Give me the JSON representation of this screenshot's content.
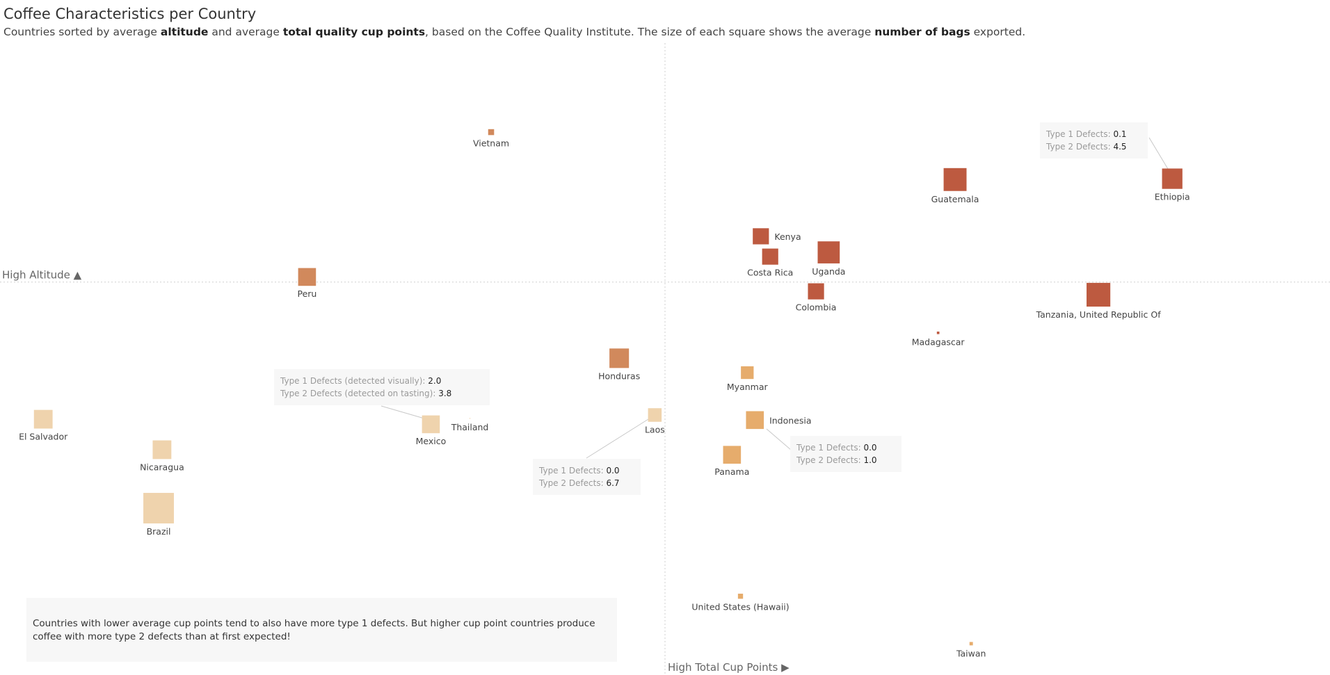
{
  "header": {
    "title": "Coffee Characteristics per Country",
    "subtitle_parts": [
      {
        "text": "Countries sorted by average ",
        "bold": false
      },
      {
        "text": "altitude",
        "bold": true
      },
      {
        "text": " and average ",
        "bold": false
      },
      {
        "text": "total quality cup points",
        "bold": true
      },
      {
        "text": ", based on the Coffee Quality Institute. The size of each square shows the average ",
        "bold": false
      },
      {
        "text": "number of bags",
        "bold": true
      },
      {
        "text": " exported.",
        "bold": false
      }
    ]
  },
  "note": "Countries with lower average cup points tend to also have more type 1 defects. But higher cup point countries produce coffee with more type 2 defects than at first expected!",
  "chart_data": {
    "type": "scatter",
    "title": "Coffee Characteristics per Country",
    "xlabel": "High Total Cup Points ▶",
    "ylabel": "High Altitude ▲",
    "xlim": [
      0,
      1568
    ],
    "ylim": [
      0,
      797
    ],
    "x_divider": 784,
    "y_divider": 464,
    "grid": false,
    "color_scale": {
      "low": "#efd3ad",
      "mid": "#e6ac6c",
      "high": "#d1895c",
      "top": "#bd5a40"
    },
    "points": [
      {
        "country": "Vietnam",
        "x": 579,
        "y": 641,
        "bags": 7,
        "color": "#d1895c"
      },
      {
        "country": "Peru",
        "x": 362,
        "y": 470,
        "bags": 21,
        "color": "#d1895c"
      },
      {
        "country": "Honduras",
        "x": 730,
        "y": 374,
        "bags": 23,
        "color": "#d1895c"
      },
      {
        "country": "Guatemala",
        "x": 1126,
        "y": 585,
        "bags": 27,
        "color": "#bd5a40"
      },
      {
        "country": "Ethiopia",
        "x": 1382,
        "y": 586,
        "bags": 24,
        "color": "#bd5a40"
      },
      {
        "country": "Kenya",
        "x": 897,
        "y": 518,
        "bags": 19,
        "color": "#bd5a40"
      },
      {
        "country": "Costa Rica",
        "x": 908,
        "y": 494,
        "bags": 19,
        "color": "#bd5a40"
      },
      {
        "country": "Uganda",
        "x": 977,
        "y": 499,
        "bags": 26,
        "color": "#bd5a40"
      },
      {
        "country": "Colombia",
        "x": 962,
        "y": 453,
        "bags": 19,
        "color": "#bd5a40"
      },
      {
        "country": "Tanzania, United Republic Of",
        "x": 1295,
        "y": 449,
        "bags": 28,
        "color": "#bd5a40"
      },
      {
        "country": "Madagascar",
        "x": 1106,
        "y": 404,
        "bags": 3,
        "color": "#bd5a40"
      },
      {
        "country": "Myanmar",
        "x": 881,
        "y": 357,
        "bags": 15,
        "color": "#e6ac6c"
      },
      {
        "country": "El Salvador",
        "x": 51,
        "y": 302,
        "bags": 22,
        "color": "#efd3ad"
      },
      {
        "country": "Nicaragua",
        "x": 191,
        "y": 266,
        "bags": 22,
        "color": "#efd3ad"
      },
      {
        "country": "Brazil",
        "x": 187,
        "y": 197,
        "bags": 36,
        "color": "#efd3ad"
      },
      {
        "country": "Mexico",
        "x": 508,
        "y": 296,
        "bags": 21,
        "color": "#efd3ad"
      },
      {
        "country": "Thailand",
        "x": 554,
        "y": 303,
        "bags": 1,
        "color": "#efd3ad"
      },
      {
        "country": "Laos",
        "x": 772,
        "y": 307,
        "bags": 16,
        "color": "#efd3ad"
      },
      {
        "country": "Indonesia",
        "x": 890,
        "y": 301,
        "bags": 21,
        "color": "#e6ac6c"
      },
      {
        "country": "Panama",
        "x": 863,
        "y": 260,
        "bags": 21,
        "color": "#e6ac6c"
      },
      {
        "country": "United States (Hawaii)",
        "x": 873,
        "y": 93,
        "bags": 6,
        "color": "#e6ac6c"
      },
      {
        "country": "Taiwan",
        "x": 1145,
        "y": 37,
        "bags": 4,
        "color": "#e6ac6c"
      }
    ],
    "annotations": [
      {
        "country": "Ethiopia",
        "rows": [
          [
            "Type 1 Defects: ",
            "0.1"
          ],
          [
            "Type 2 Defects: ",
            "4.5"
          ]
        ]
      },
      {
        "country": "Mexico",
        "rows": [
          [
            "Type 1 Defects (detected visually): ",
            "2.0"
          ],
          [
            "Type 2 Defects (detected on tasting): ",
            "3.8"
          ]
        ]
      },
      {
        "country": "Laos",
        "rows": [
          [
            "Type 1 Defects: ",
            "0.0"
          ],
          [
            "Type 2 Defects: ",
            "6.7"
          ]
        ]
      },
      {
        "country": "Indonesia",
        "rows": [
          [
            "Type 1 Defects: ",
            "0.0"
          ],
          [
            "Type 2 Defects: ",
            "1.0"
          ]
        ]
      }
    ]
  }
}
